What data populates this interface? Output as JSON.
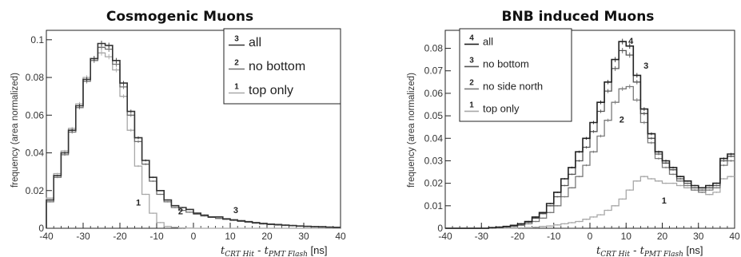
{
  "chart_data": [
    {
      "type": "line",
      "title": "Cosmogenic Muons",
      "xlabel": {
        "main": "t",
        "sub1": "CRT Hit",
        "mid": " - t",
        "sub2": "PMT Flash",
        "unit": " [ns]"
      },
      "ylabel": "frequency (area normalized)",
      "xlim": [
        -40,
        40
      ],
      "ylim": [
        0,
        0.105
      ],
      "xticks": [
        -40,
        -30,
        -20,
        -10,
        0,
        10,
        20,
        30,
        40
      ],
      "yticks": [
        0,
        0.02,
        0.04,
        0.06,
        0.08,
        0.1
      ],
      "ytick_labels": [
        "0",
        "0.02",
        "0.04",
        "0.06",
        "0.08",
        "0.1"
      ],
      "bin_width": 2,
      "bin_start": -40,
      "legend": [
        {
          "num": "3",
          "label": "all",
          "color": "#333333"
        },
        {
          "num": "2",
          "label": "no bottom",
          "color": "#707070"
        },
        {
          "num": "1",
          "label": "top only",
          "color": "#a8a8a8"
        }
      ],
      "annotations": [
        {
          "text": "1",
          "x": -15,
          "y": 0.012
        },
        {
          "text": "2",
          "x": -3.5,
          "y": 0.0075
        },
        {
          "text": "3",
          "x": 11.5,
          "y": 0.008
        }
      ],
      "series": [
        {
          "name": "all",
          "color": "#333333",
          "width": 1.6,
          "values": [
            0.015,
            0.028,
            0.04,
            0.052,
            0.065,
            0.079,
            0.09,
            0.098,
            0.097,
            0.089,
            0.077,
            0.062,
            0.048,
            0.036,
            0.027,
            0.02,
            0.015,
            0.012,
            0.011,
            0.01,
            0.008,
            0.007,
            0.006,
            0.006,
            0.005,
            0.0045,
            0.004,
            0.0035,
            0.003,
            0.0026,
            0.0022,
            0.002,
            0.0017,
            0.0015,
            0.0012,
            0.001,
            0.0009,
            0.0008,
            0.0006,
            0.0005
          ]
        },
        {
          "name": "no bottom",
          "color": "#707070",
          "width": 1.3,
          "values": [
            0.014,
            0.027,
            0.039,
            0.051,
            0.064,
            0.078,
            0.089,
            0.096,
            0.095,
            0.087,
            0.075,
            0.06,
            0.046,
            0.034,
            0.025,
            0.018,
            0.014,
            0.011,
            0.0095,
            0.0085,
            0.0075,
            0.0065,
            0.0058,
            0.0052,
            0.0047,
            0.0042,
            0.0037,
            0.0032,
            0.0027,
            0.0023,
            0.002,
            0.0017,
            0.0015,
            0.0013,
            0.0011,
            0.0009,
            0.0008,
            0.0006,
            0.0005,
            0.0004
          ]
        },
        {
          "name": "top only",
          "color": "#a8a8a8",
          "width": 1.3,
          "values": [
            0.016,
            0.029,
            0.041,
            0.053,
            0.066,
            0.08,
            0.09,
            0.093,
            0.091,
            0.084,
            0.07,
            0.052,
            0.033,
            0.018,
            0.008,
            0.003,
            0.001,
            0.0005,
            0.0002,
            0.0001,
            0,
            0,
            0,
            0,
            0,
            0,
            0,
            0,
            0,
            0,
            0,
            0,
            0,
            0,
            0,
            0,
            0,
            0,
            0,
            0
          ]
        }
      ]
    },
    {
      "type": "line",
      "title": "BNB induced Muons",
      "xlabel": {
        "main": "t",
        "sub1": "CRT Hit",
        "mid": " - t",
        "sub2": "PMT Flash",
        "unit": " [ns]"
      },
      "ylabel": "frequency (area normalized)",
      "xlim": [
        -40,
        40
      ],
      "ylim": [
        0,
        0.088
      ],
      "xticks": [
        -40,
        -30,
        -20,
        -10,
        0,
        10,
        20,
        30,
        40
      ],
      "yticks": [
        0,
        0.01,
        0.02,
        0.03,
        0.04,
        0.05,
        0.06,
        0.07,
        0.08
      ],
      "ytick_labels": [
        "0",
        "0.01",
        "0.02",
        "0.03",
        "0.04",
        "0.05",
        "0.06",
        "0.07",
        "0.08"
      ],
      "bin_width": 2,
      "bin_start": -40,
      "legend": [
        {
          "num": "4",
          "label": "all",
          "color": "#222222"
        },
        {
          "num": "3",
          "label": "no bottom",
          "color": "#555555"
        },
        {
          "num": "2",
          "label": "no side north",
          "color": "#7a7a7a"
        },
        {
          "num": "1",
          "label": "top only",
          "color": "#a8a8a8"
        }
      ],
      "annotations": [
        {
          "text": "4",
          "x": 11.3,
          "y": 0.082
        },
        {
          "text": "3",
          "x": 15.5,
          "y": 0.071
        },
        {
          "text": "2",
          "x": 8.8,
          "y": 0.047
        },
        {
          "text": "1",
          "x": 20.5,
          "y": 0.011
        }
      ],
      "series": [
        {
          "name": "all",
          "color": "#222222",
          "width": 1.6,
          "values": [
            0,
            0,
            0,
            0,
            0,
            0,
            0.0003,
            0.0005,
            0.0008,
            0.0013,
            0.002,
            0.003,
            0.005,
            0.007,
            0.011,
            0.016,
            0.022,
            0.027,
            0.034,
            0.04,
            0.047,
            0.056,
            0.065,
            0.075,
            0.083,
            0.081,
            0.068,
            0.053,
            0.042,
            0.034,
            0.03,
            0.027,
            0.023,
            0.021,
            0.019,
            0.018,
            0.019,
            0.02,
            0.031,
            0.033
          ]
        },
        {
          "name": "no bottom",
          "color": "#555555",
          "width": 1.3,
          "values": [
            0,
            0,
            0,
            0,
            0,
            0,
            0.0002,
            0.0004,
            0.0007,
            0.0011,
            0.0018,
            0.0027,
            0.0045,
            0.0065,
            0.01,
            0.014,
            0.019,
            0.024,
            0.03,
            0.036,
            0.043,
            0.052,
            0.061,
            0.071,
            0.079,
            0.077,
            0.065,
            0.051,
            0.04,
            0.033,
            0.029,
            0.026,
            0.022,
            0.02,
            0.018,
            0.017,
            0.018,
            0.019,
            0.03,
            0.032
          ]
        },
        {
          "name": "no side north",
          "color": "#7a7a7a",
          "width": 1.3,
          "values": [
            0,
            0,
            0,
            0,
            0,
            0,
            0.0001,
            0.0003,
            0.0005,
            0.0008,
            0.0013,
            0.002,
            0.003,
            0.0045,
            0.007,
            0.01,
            0.014,
            0.018,
            0.023,
            0.028,
            0.034,
            0.041,
            0.048,
            0.056,
            0.062,
            0.063,
            0.057,
            0.047,
            0.038,
            0.031,
            0.027,
            0.024,
            0.021,
            0.019,
            0.017,
            0.016,
            0.017,
            0.018,
            0.028,
            0.03
          ]
        },
        {
          "name": "top only",
          "color": "#a8a8a8",
          "width": 1.3,
          "values": [
            0,
            0,
            0,
            0,
            0,
            0,
            0,
            0,
            0,
            0.0001,
            0.0002,
            0.0003,
            0.0005,
            0.0008,
            0.001,
            0.0015,
            0.002,
            0.0025,
            0.003,
            0.004,
            0.005,
            0.006,
            0.008,
            0.01,
            0.013,
            0.017,
            0.021,
            0.023,
            0.022,
            0.021,
            0.02,
            0.02,
            0.019,
            0.018,
            0.017,
            0.016,
            0.015,
            0.016,
            0.022,
            0.023
          ]
        }
      ]
    }
  ]
}
